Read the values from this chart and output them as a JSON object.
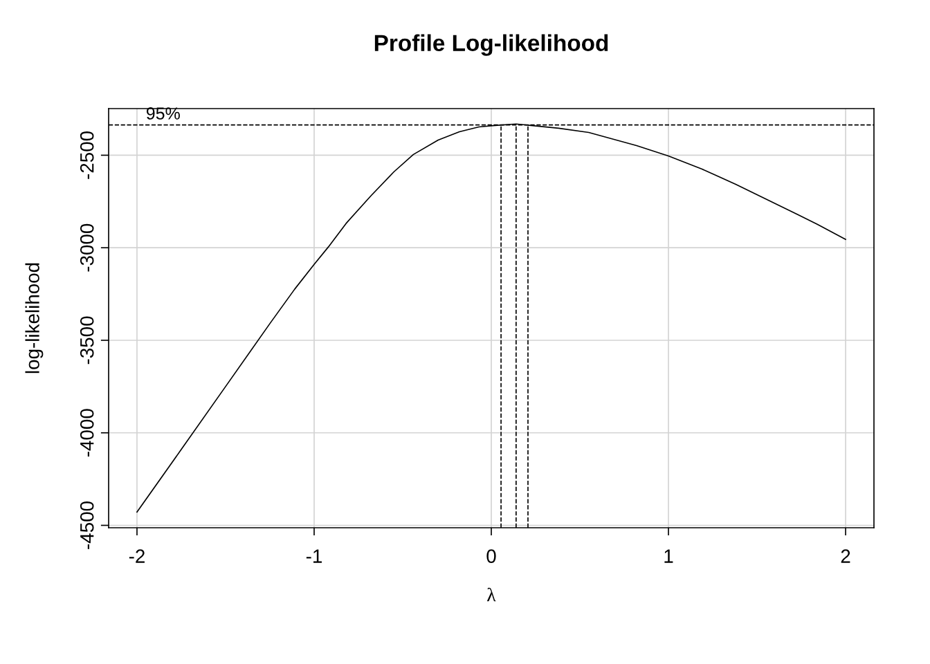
{
  "chart_data": {
    "type": "line",
    "title": "Profile Log-likelihood",
    "xlabel": "λ",
    "ylabel": "log-likelihood",
    "x": [
      -2,
      -1.75,
      -1.5,
      -1.25,
      -1.11,
      -1,
      -0.92,
      -0.82,
      -0.68,
      -0.55,
      -0.44,
      -0.3,
      -0.18,
      -0.07,
      0.01,
      0.14,
      0.38,
      0.55,
      0.82,
      1,
      1.19,
      1.38,
      1.5,
      1.73,
      1.84,
      2
    ],
    "series": [
      {
        "color": "#000000",
        "values": [
          -4428,
          -4090,
          -3750,
          -3410,
          -3224,
          -3090,
          -2996,
          -2869,
          -2720,
          -2590,
          -2496,
          -2418,
          -2373,
          -2347,
          -2340,
          -2331,
          -2354,
          -2377,
          -2448,
          -2504,
          -2575,
          -2657,
          -2713,
          -2821,
          -2873,
          -2955
        ]
      }
    ],
    "xlim": [
      -2.16,
      2.16
    ],
    "xticks": [
      -2,
      -1,
      0,
      1,
      2
    ],
    "ylim": [
      -4513,
      -2248
    ],
    "yticks": [
      -4500,
      -4000,
      -3500,
      -3000,
      -2500
    ],
    "grid": true,
    "line_style": "solid",
    "marker": "none",
    "ref_lines": [
      {
        "axis": "y",
        "value": -2336,
        "line_style": "dashed",
        "color": "#000000"
      },
      {
        "axis": "x",
        "value": 0.055,
        "line_style": "dashed",
        "color": "#000000"
      },
      {
        "axis": "x",
        "value": 0.14,
        "line_style": "dashed",
        "color": "#000000"
      },
      {
        "axis": "x",
        "value": 0.207,
        "line_style": "dashed",
        "color": "#000000"
      }
    ],
    "annotations": [
      {
        "text": "95%",
        "x": -1.95,
        "y": -2336
      }
    ]
  }
}
